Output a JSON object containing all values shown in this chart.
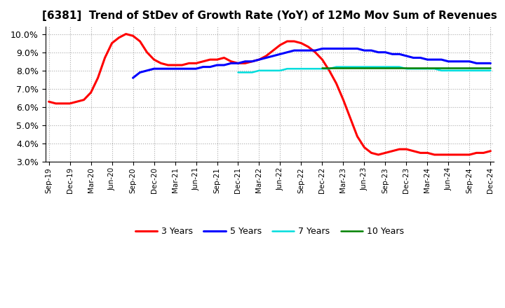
{
  "title": "[6381]  Trend of StDev of Growth Rate (YoY) of 12Mo Mov Sum of Revenues",
  "title_fontsize": 11,
  "ylim": [
    0.03,
    0.104
  ],
  "yticks": [
    0.03,
    0.04,
    0.05,
    0.06,
    0.07,
    0.08,
    0.09,
    0.1
  ],
  "background_color": "#ffffff",
  "plot_bg_color": "#ffffff",
  "grid_color": "#aaaaaa",
  "series": {
    "3 Years": {
      "color": "#ff0000",
      "x": [
        0,
        1,
        2,
        3,
        4,
        5,
        6,
        7,
        8,
        9,
        10,
        11,
        12,
        13,
        14,
        15,
        16,
        17,
        18,
        19,
        20,
        21,
        22,
        23,
        24,
        25,
        26,
        27,
        28,
        29,
        30,
        31,
        32,
        33,
        34,
        35,
        36,
        37,
        38,
        39,
        40,
        41,
        42,
        43,
        44,
        45,
        46,
        47,
        48,
        49,
        50,
        51,
        52,
        53,
        54,
        55,
        56,
        57,
        58,
        59,
        60,
        61,
        62,
        63
      ],
      "y": [
        0.063,
        0.062,
        0.062,
        0.062,
        0.063,
        0.064,
        0.068,
        0.076,
        0.087,
        0.095,
        0.098,
        0.1,
        0.099,
        0.096,
        0.09,
        0.086,
        0.084,
        0.083,
        0.083,
        0.083,
        0.084,
        0.084,
        0.085,
        0.086,
        0.086,
        0.087,
        0.085,
        0.084,
        0.084,
        0.085,
        0.086,
        0.088,
        0.091,
        0.094,
        0.096,
        0.096,
        0.095,
        0.093,
        0.09,
        0.086,
        0.08,
        0.073,
        0.064,
        0.054,
        0.044,
        0.038,
        0.035,
        0.034,
        0.035,
        0.036,
        0.037,
        0.037,
        0.036,
        0.035,
        0.035,
        0.034,
        0.034,
        0.034,
        0.034,
        0.034,
        0.034,
        0.035,
        0.035,
        0.036
      ]
    },
    "5 Years": {
      "color": "#0000ff",
      "x": [
        12,
        13,
        14,
        15,
        16,
        17,
        18,
        19,
        20,
        21,
        22,
        23,
        24,
        25,
        26,
        27,
        28,
        29,
        30,
        31,
        32,
        33,
        34,
        35,
        36,
        37,
        38,
        39,
        40,
        41,
        42,
        43,
        44,
        45,
        46,
        47,
        48,
        49,
        50,
        51,
        52,
        53,
        54,
        55,
        56,
        57,
        58,
        59,
        60,
        61,
        62,
        63
      ],
      "y": [
        0.076,
        0.079,
        0.08,
        0.081,
        0.081,
        0.081,
        0.081,
        0.081,
        0.081,
        0.081,
        0.082,
        0.082,
        0.083,
        0.083,
        0.084,
        0.084,
        0.085,
        0.085,
        0.086,
        0.087,
        0.088,
        0.089,
        0.09,
        0.091,
        0.091,
        0.091,
        0.091,
        0.092,
        0.092,
        0.092,
        0.092,
        0.092,
        0.092,
        0.091,
        0.091,
        0.09,
        0.09,
        0.089,
        0.089,
        0.088,
        0.087,
        0.087,
        0.086,
        0.086,
        0.086,
        0.085,
        0.085,
        0.085,
        0.085,
        0.084,
        0.084,
        0.084
      ]
    },
    "7 Years": {
      "color": "#00dddd",
      "x": [
        27,
        28,
        29,
        30,
        31,
        32,
        33,
        34,
        35,
        36,
        37,
        38,
        39,
        40,
        41,
        42,
        43,
        44,
        45,
        46,
        47,
        48,
        49,
        50,
        51,
        52,
        53,
        54,
        55,
        56,
        57,
        58,
        59,
        60,
        61,
        62,
        63
      ],
      "y": [
        0.079,
        0.079,
        0.079,
        0.08,
        0.08,
        0.08,
        0.08,
        0.081,
        0.081,
        0.081,
        0.081,
        0.081,
        0.081,
        0.081,
        0.082,
        0.082,
        0.082,
        0.082,
        0.082,
        0.082,
        0.082,
        0.082,
        0.082,
        0.082,
        0.081,
        0.081,
        0.081,
        0.081,
        0.081,
        0.08,
        0.08,
        0.08,
        0.08,
        0.08,
        0.08,
        0.08,
        0.08
      ]
    },
    "10 Years": {
      "color": "#008000",
      "x": [
        39,
        40,
        41,
        42,
        43,
        44,
        45,
        46,
        47,
        48,
        49,
        50,
        51,
        52,
        53,
        54,
        55,
        56,
        57,
        58,
        59,
        60,
        61,
        62,
        63
      ],
      "y": [
        0.0815,
        0.0815,
        0.0815,
        0.0815,
        0.0815,
        0.0815,
        0.0815,
        0.0815,
        0.0815,
        0.0815,
        0.0815,
        0.0815,
        0.0815,
        0.0815,
        0.0815,
        0.0815,
        0.0815,
        0.0815,
        0.0815,
        0.0815,
        0.0815,
        0.0815,
        0.0815,
        0.0815,
        0.0815
      ]
    }
  },
  "xtick_labels": [
    "Sep-19",
    "Dec-19",
    "Mar-20",
    "Jun-20",
    "Sep-20",
    "Dec-20",
    "Mar-21",
    "Jun-21",
    "Sep-21",
    "Dec-21",
    "Mar-22",
    "Jun-22",
    "Sep-22",
    "Dec-22",
    "Mar-23",
    "Jun-23",
    "Sep-23",
    "Dec-23",
    "Mar-24",
    "Jun-24",
    "Sep-24",
    "Dec-24"
  ],
  "xtick_positions": [
    0,
    3,
    6,
    9,
    12,
    15,
    18,
    21,
    24,
    27,
    30,
    33,
    36,
    39,
    42,
    45,
    48,
    51,
    54,
    57,
    60,
    63
  ]
}
